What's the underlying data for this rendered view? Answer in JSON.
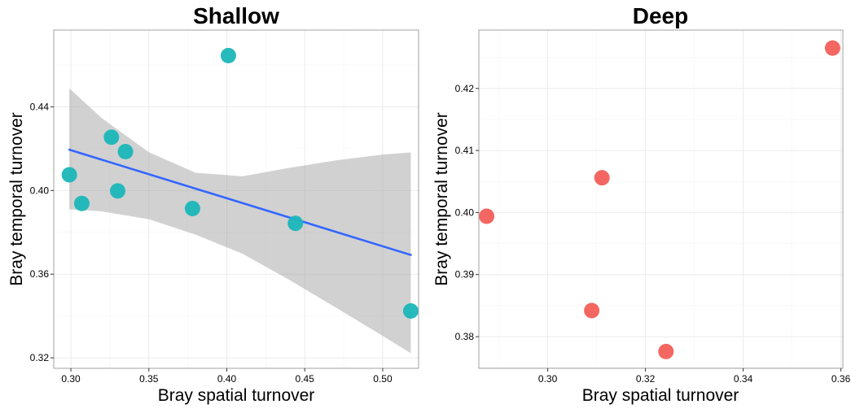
{
  "chart_data": [
    {
      "type": "scatter",
      "title": "Shallow",
      "xlabel": "Bray spatial turnover",
      "ylabel": "Bray temporal turnover",
      "xlim": [
        0.289,
        0.523
      ],
      "ylim": [
        0.315,
        0.4767
      ],
      "xticks": [
        0.3,
        0.35,
        0.4,
        0.45,
        0.5
      ],
      "xtick_labels": [
        "0.30",
        "0.35",
        "0.40",
        "0.45",
        "0.50"
      ],
      "yticks": [
        0.32,
        0.36,
        0.4,
        0.44
      ],
      "ytick_labels": [
        "0.32",
        "0.36",
        "0.40",
        "0.44"
      ],
      "grid": true,
      "series": [
        {
          "color": "#1bb6b9",
          "points": [
            {
              "x": 0.299,
              "y": 0.4075
            },
            {
              "x": 0.307,
              "y": 0.3938
            },
            {
              "x": 0.326,
              "y": 0.4255
            },
            {
              "x": 0.33,
              "y": 0.3998
            },
            {
              "x": 0.335,
              "y": 0.4186
            },
            {
              "x": 0.378,
              "y": 0.3914
            },
            {
              "x": 0.401,
              "y": 0.4645
            },
            {
              "x": 0.444,
              "y": 0.3843
            },
            {
              "x": 0.518,
              "y": 0.3424
            }
          ]
        }
      ],
      "fit": {
        "color": "#3366ff",
        "band_color": "#999999",
        "x": [
          0.299,
          0.518
        ],
        "y": [
          0.4195,
          0.3692
        ],
        "band_x": [
          0.299,
          0.32,
          0.35,
          0.38,
          0.41,
          0.44,
          0.47,
          0.5,
          0.518
        ],
        "band_upper": [
          0.4488,
          0.4345,
          0.4183,
          0.4085,
          0.4068,
          0.4108,
          0.4144,
          0.4172,
          0.4182
        ],
        "band_lower": [
          0.391,
          0.39,
          0.3863,
          0.3789,
          0.3698,
          0.3573,
          0.344,
          0.3305,
          0.3222
        ]
      }
    },
    {
      "type": "scatter",
      "title": "Deep",
      "xlabel": "Bray spatial turnover",
      "ylabel": "Bray temporal turnover",
      "xlim": [
        0.2859,
        0.3604
      ],
      "ylim": [
        0.3749,
        0.4294
      ],
      "xticks": [
        0.3,
        0.32,
        0.34,
        0.36
      ],
      "xtick_labels": [
        "0.30",
        "0.32",
        "0.34",
        "0.36"
      ],
      "yticks": [
        0.38,
        0.39,
        0.4,
        0.41,
        0.42
      ],
      "ytick_labels": [
        "0.38",
        "0.39",
        "0.40",
        "0.41",
        "0.42"
      ],
      "grid": true,
      "series": [
        {
          "color": "#f35e5a",
          "points": [
            {
              "x": 0.2875,
              "y": 0.3994
            },
            {
              "x": 0.309,
              "y": 0.3842
            },
            {
              "x": 0.3111,
              "y": 0.4056
            },
            {
              "x": 0.3242,
              "y": 0.3776
            },
            {
              "x": 0.3583,
              "y": 0.4265
            }
          ]
        }
      ]
    }
  ]
}
